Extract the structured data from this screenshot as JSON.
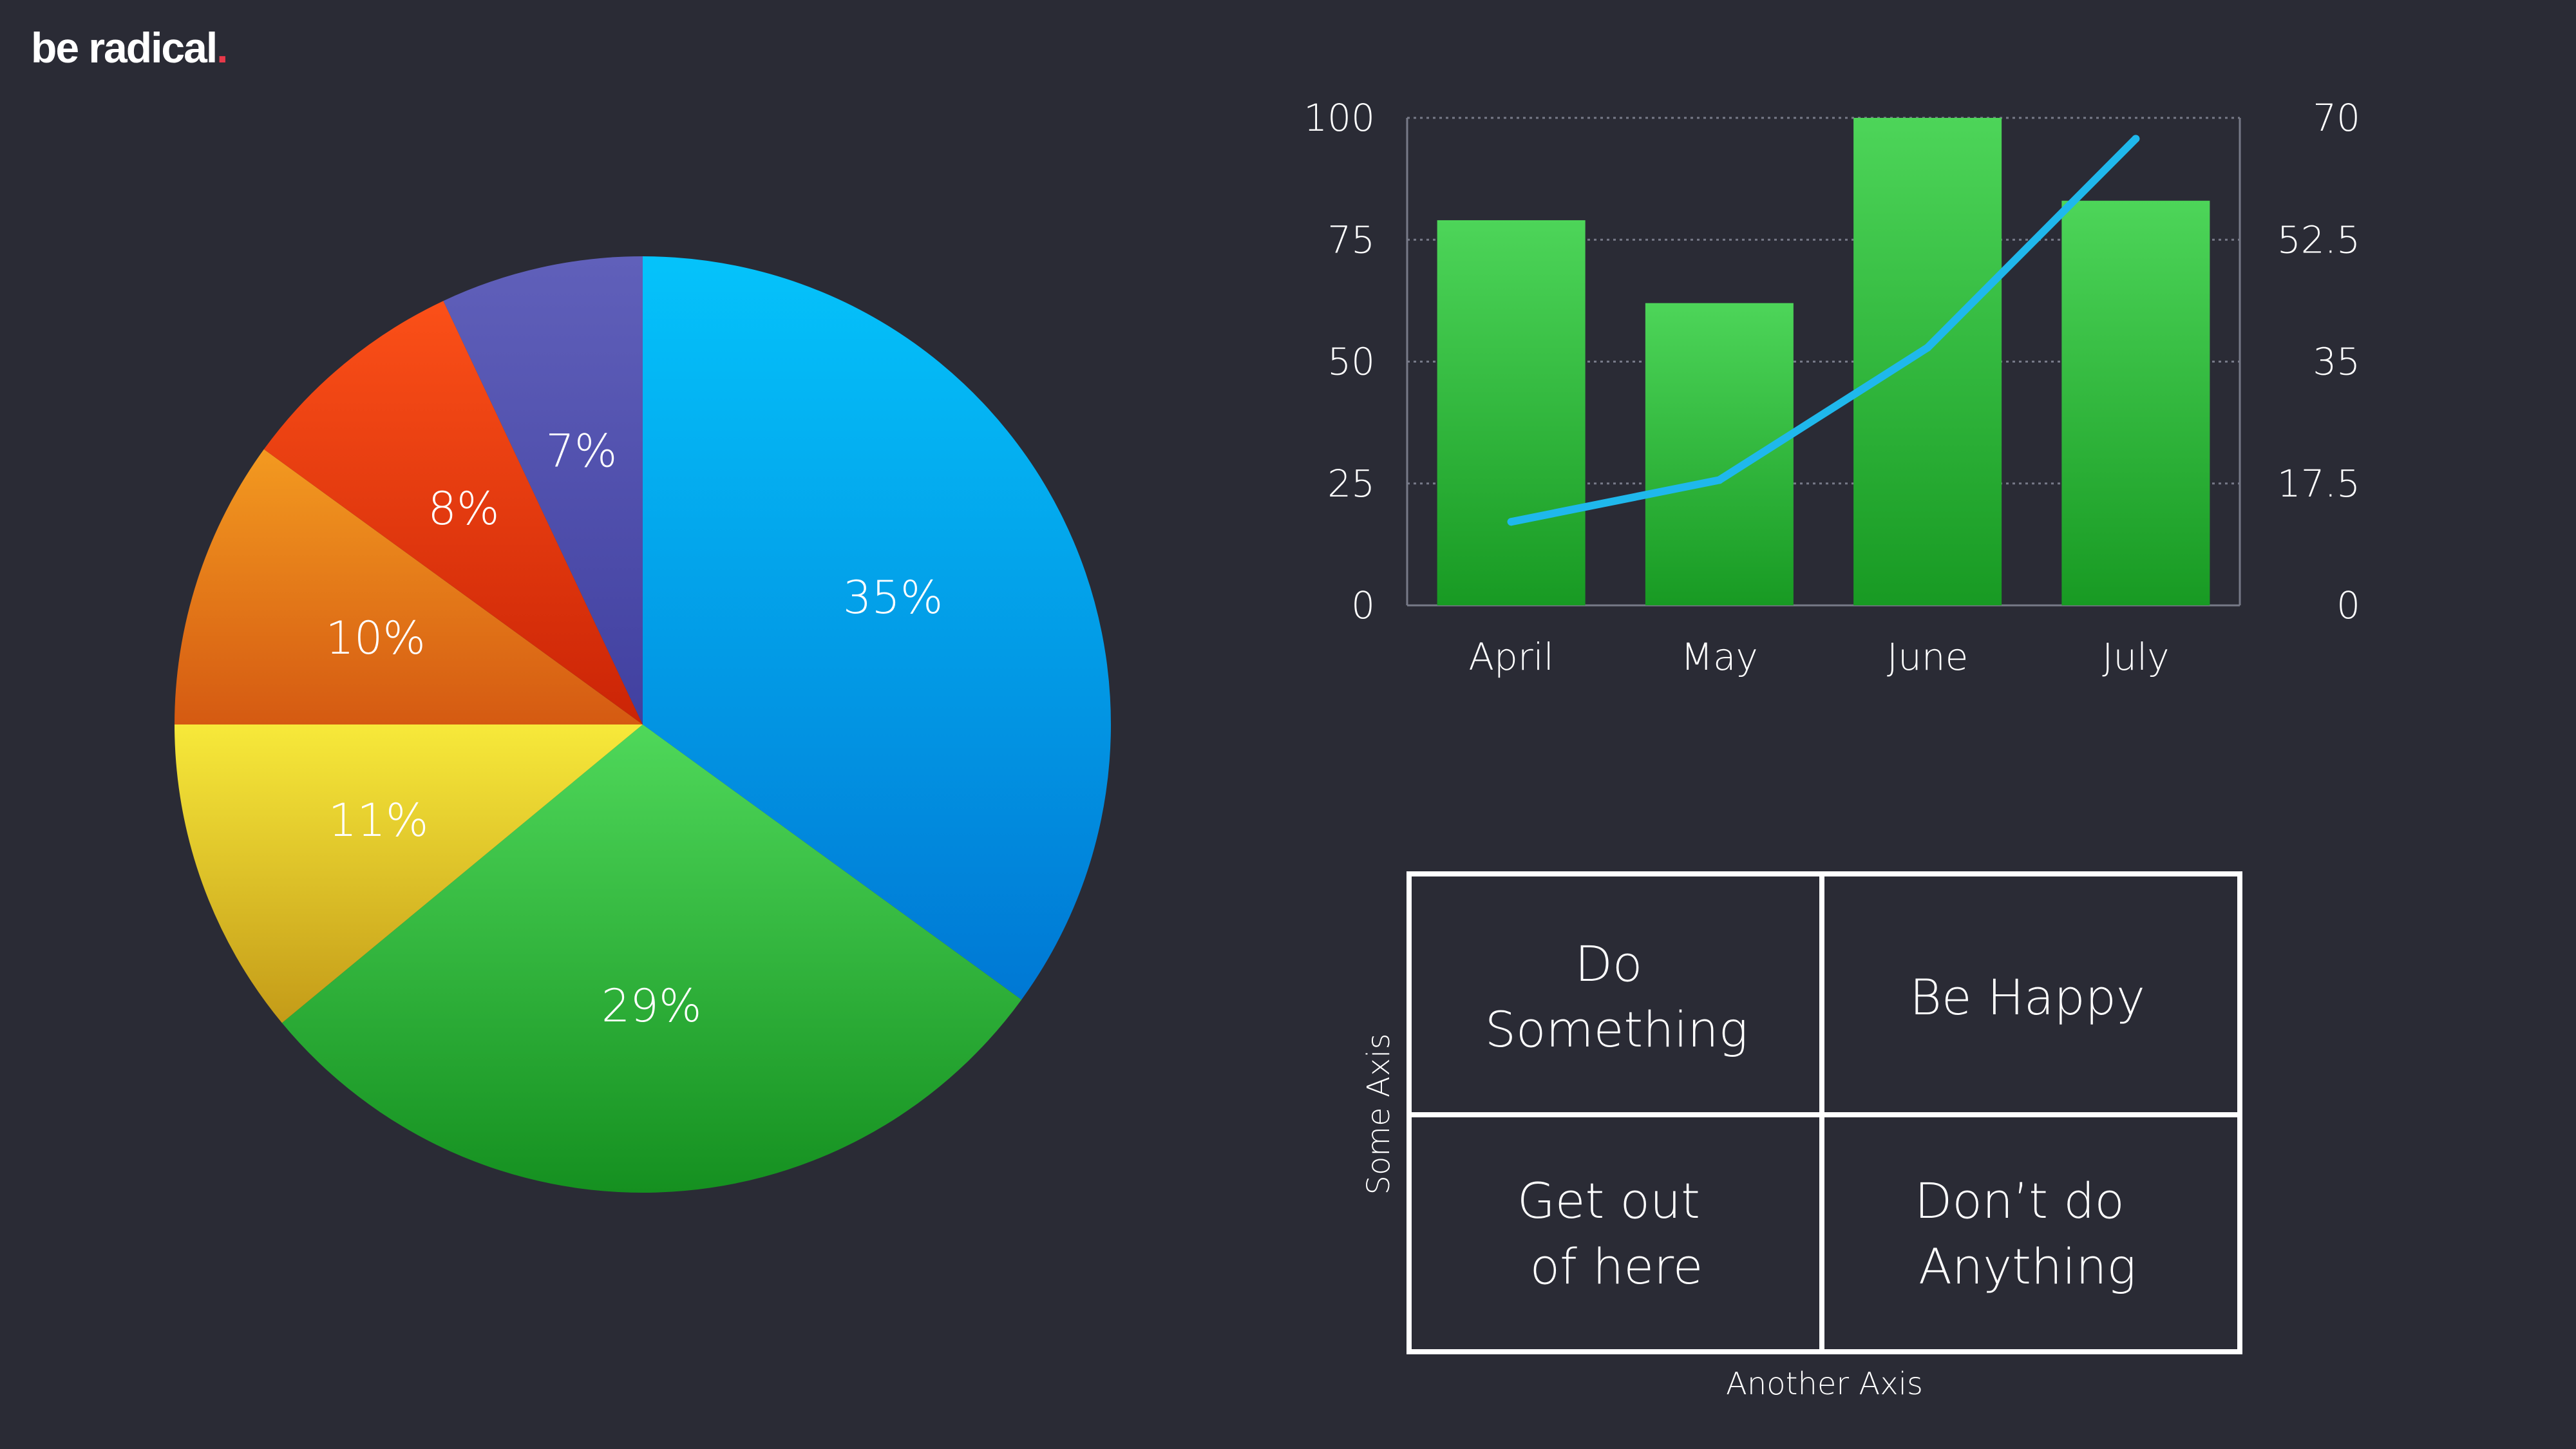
{
  "logo": {
    "text": "be radical",
    "dot": "."
  },
  "colors": {
    "background": "#2a2b35",
    "logo_dot": "#e8394a",
    "bar": "#2fb53b",
    "line": "#1fb8ec",
    "grid": "#777a88"
  },
  "chart_data": [
    {
      "type": "pie",
      "slices": [
        {
          "label": "35%",
          "value": 35,
          "color_top": "#05c3fb",
          "color_bottom": "#0078d4"
        },
        {
          "label": "29%",
          "value": 29,
          "color_top": "#4fd85a",
          "color_bottom": "#159020"
        },
        {
          "label": "11%",
          "value": 11,
          "color_top": "#f7e93a",
          "color_bottom": "#c49b18"
        },
        {
          "label": "10%",
          "value": 10,
          "color_top": "#f39a20",
          "color_bottom": "#d55a12"
        },
        {
          "label": "8%",
          "value": 8,
          "color_top": "#fb5018",
          "color_bottom": "#cb2406"
        },
        {
          "label": "7%",
          "value": 7,
          "color_top": "#6060ba",
          "color_bottom": "#4140a0"
        }
      ]
    },
    {
      "type": "bar",
      "categories": [
        "April",
        "May",
        "June",
        "July"
      ],
      "series": [
        {
          "values": [
            79,
            62,
            100,
            83
          ]
        },
        {
          "values": [
            12,
            18,
            37,
            67
          ]
        }
      ],
      "ylim": [
        0,
        100
      ],
      "y2lim": [
        0,
        70
      ],
      "yticks": [
        "0",
        "25",
        "50",
        "75",
        "100"
      ],
      "y2ticks": [
        "0",
        "17.5",
        "35",
        "52.5",
        "70"
      ],
      "grid": true
    }
  ],
  "matrix": {
    "cells": [
      {
        "lines": [
          "Do",
          "Something"
        ]
      },
      {
        "lines": [
          "Be Happy"
        ]
      },
      {
        "lines": [
          "Get out",
          "of here"
        ]
      },
      {
        "lines": [
          "Don’t do",
          "Anything"
        ]
      }
    ],
    "y_axis_label": "Some Axis",
    "x_axis_label": "Another Axis"
  }
}
